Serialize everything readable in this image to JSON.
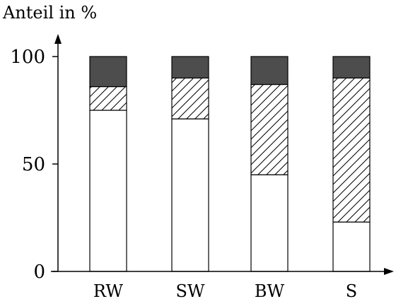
{
  "chart_data": {
    "type": "bar",
    "stacked": true,
    "ylabel": "Anteil in %",
    "xlabel": "",
    "ylim": [
      0,
      100
    ],
    "yticks": [
      "0",
      "50",
      "100"
    ],
    "categories": [
      "RW",
      "SW",
      "BW",
      "S"
    ],
    "series": [
      {
        "fill": "white",
        "values": [
          75,
          71,
          45,
          23
        ]
      },
      {
        "fill": "hatched",
        "values": [
          11,
          19,
          42,
          67
        ]
      },
      {
        "fill": "dark",
        "values": [
          14,
          10,
          13,
          10
        ]
      }
    ],
    "colors": {
      "dark": "#4d4d4d",
      "white": "#ffffff",
      "line": "#000000"
    }
  }
}
